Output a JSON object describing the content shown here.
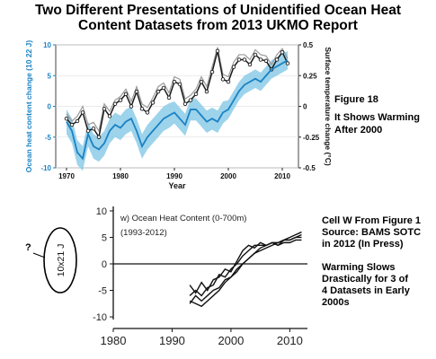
{
  "page": {
    "title_line1": "Two Different Presentations of Unidentified Ocean Heat",
    "title_line2": "Content Datasets from 2013 UKMO Report",
    "annotation_figure": "Figure 18",
    "annotation_warming_line1": "It Shows Warming",
    "annotation_warming_line2": "After 2000",
    "annotation_source_line1": "Cell W From Figure 1",
    "annotation_source_line2": "Source: BAMS SOTC",
    "annotation_source_line3": "in 2012 (In Press)",
    "annotation_slows_line1": "Warming Slows",
    "annotation_slows_line2": "Drastically for 3 of",
    "annotation_slows_line3": "4 Datasets in Early",
    "annotation_slows_line4": "2000s",
    "question_mark": "?"
  },
  "chart_data": [
    {
      "type": "line",
      "xlabel": "Year",
      "ylabel_left": "Ocean heat content change (10 22 J)",
      "ylabel_right": "Surface temperature change (°C)",
      "xlim": [
        1968,
        2013
      ],
      "ylim_left": [
        -10,
        10
      ],
      "ylim_right": [
        -0.5,
        0.5
      ],
      "x_ticks": [
        1970,
        1980,
        1990,
        2000,
        2010
      ],
      "y_ticks_left": [
        -10,
        -5,
        0,
        5,
        10
      ],
      "y_ticks_right": [
        -0.5,
        -0.25,
        0,
        0.25,
        0.5
      ],
      "colors": {
        "ohc": "#1a82c4",
        "band": "#8ccbe8",
        "surface": "#1a1a1a",
        "surface_alt": "#9a9a9a",
        "axis_left": "#1a82c4"
      },
      "series": [
        {
          "axis": "left",
          "x": [
            1970,
            1971,
            1972,
            1973,
            1974,
            1975,
            1976,
            1977,
            1978,
            1979,
            1980,
            1981,
            1982,
            1983,
            1984,
            1985,
            1986,
            1987,
            1988,
            1989,
            1990,
            1991,
            1992,
            1993,
            1994,
            1995,
            1996,
            1997,
            1998,
            1999,
            2000,
            2001,
            2002,
            2003,
            2004,
            2005,
            2006,
            2007,
            2008,
            2009,
            2010,
            2011
          ],
          "values": [
            -2.5,
            -4.0,
            -7.5,
            -8.5,
            -4.5,
            -6.5,
            -7.0,
            -6.0,
            -4.0,
            -3.0,
            -3.5,
            -2.5,
            -2.0,
            -4.0,
            -6.5,
            -5.0,
            -4.0,
            -3.0,
            -2.0,
            -1.5,
            -1.0,
            -2.0,
            -3.0,
            -0.5,
            -0.5,
            -1.5,
            -2.5,
            -2.0,
            -2.5,
            -1.0,
            -0.5,
            1.0,
            2.5,
            3.5,
            4.0,
            4.5,
            4.0,
            5.0,
            6.0,
            6.5,
            7.0,
            7.5
          ],
          "band": [
            2.0,
            2.0,
            2.0,
            2.0,
            2.0,
            2.0,
            2.0,
            2.0,
            2.0,
            2.0,
            2.0,
            2.0,
            2.0,
            2.0,
            2.0,
            2.0,
            2.0,
            2.0,
            2.0,
            2.0,
            1.8,
            1.8,
            1.8,
            1.8,
            1.8,
            1.8,
            1.8,
            1.8,
            1.8,
            1.8,
            1.5,
            1.5,
            1.5,
            1.5,
            1.5,
            1.5,
            1.5,
            1.5,
            1.5,
            1.5,
            1.5,
            1.5
          ]
        },
        {
          "axis": "right",
          "x": [
            1970,
            1971,
            1972,
            1973,
            1974,
            1975,
            1976,
            1977,
            1978,
            1979,
            1980,
            1981,
            1982,
            1983,
            1984,
            1985,
            1986,
            1987,
            1988,
            1989,
            1990,
            1991,
            1992,
            1993,
            1994,
            1995,
            1996,
            1997,
            1998,
            1999,
            2000,
            2001,
            2002,
            2003,
            2004,
            2005,
            2006,
            2007,
            2008,
            2009,
            2010,
            2011
          ],
          "values": [
            -0.1,
            -0.15,
            -0.12,
            -0.05,
            -0.2,
            -0.18,
            -0.25,
            -0.02,
            -0.08,
            0.02,
            0.05,
            0.1,
            0.0,
            0.12,
            -0.02,
            -0.05,
            0.03,
            0.12,
            0.15,
            0.07,
            0.2,
            0.18,
            0.02,
            0.05,
            0.1,
            0.2,
            0.12,
            0.28,
            0.45,
            0.22,
            0.2,
            0.32,
            0.38,
            0.38,
            0.34,
            0.42,
            0.38,
            0.37,
            0.3,
            0.38,
            0.44,
            0.35
          ]
        },
        {
          "axis": "right",
          "x": [
            1970,
            1971,
            1972,
            1973,
            1974,
            1975,
            1976,
            1977,
            1978,
            1979,
            1980,
            1981,
            1982,
            1983,
            1984,
            1985,
            1986,
            1987,
            1988,
            1989,
            1990,
            1991,
            1992,
            1993,
            1994,
            1995,
            1996,
            1997,
            1998,
            1999,
            2000,
            2001,
            2002,
            2003,
            2004,
            2005,
            2006,
            2007,
            2008,
            2009,
            2010,
            2011
          ],
          "values": [
            -0.06,
            -0.12,
            -0.08,
            0.0,
            -0.15,
            -0.13,
            -0.2,
            0.02,
            -0.04,
            0.05,
            0.08,
            0.14,
            0.04,
            0.16,
            0.02,
            -0.01,
            0.07,
            0.16,
            0.19,
            0.11,
            0.24,
            0.22,
            0.06,
            0.09,
            0.14,
            0.24,
            0.16,
            0.32,
            0.48,
            0.26,
            0.24,
            0.36,
            0.42,
            0.42,
            0.38,
            0.46,
            0.42,
            0.41,
            0.34,
            0.42,
            0.47,
            0.39
          ]
        }
      ]
    },
    {
      "type": "line",
      "title": "w) Ocean Heat Content (0-700m)",
      "subtitle": "(1993-2012)",
      "ylabel": "10x21 J",
      "xlim": [
        1980,
        2013
      ],
      "ylim": [
        -10.5,
        10.5
      ],
      "x_ticks": [
        1980,
        1990,
        2000,
        2010
      ],
      "x_tick_labels": [
        "1980",
        "1990",
        "2000",
        "2010"
      ],
      "y_ticks": [
        -10,
        -5,
        0,
        5,
        10
      ],
      "y_tick_labels": [
        "-10",
        "-5",
        "0",
        "5",
        "10"
      ],
      "series": [
        {
          "x": [
            1993,
            1994,
            1995,
            1996,
            1997,
            1998,
            1999,
            2000,
            2001,
            2002,
            2003,
            2004,
            2005,
            2006,
            2007,
            2008,
            2009,
            2010,
            2011,
            2012
          ],
          "values": [
            -4.0,
            -5.5,
            -3.5,
            -5.0,
            -3.0,
            -2.5,
            -1.0,
            -1.5,
            0.5,
            2.5,
            3.5,
            3.0,
            4.0,
            3.5,
            4.0,
            3.5,
            4.0,
            4.0,
            4.5,
            4.5
          ]
        },
        {
          "x": [
            1993,
            1994,
            1995,
            1996,
            1997,
            1998,
            1999,
            2000,
            2001,
            2002,
            2003,
            2004,
            2005,
            2006,
            2007,
            2008,
            2009,
            2010,
            2011,
            2012
          ],
          "values": [
            -6.0,
            -5.0,
            -6.0,
            -4.5,
            -4.0,
            -2.0,
            -2.5,
            -1.0,
            0.0,
            1.5,
            2.5,
            3.5,
            3.5,
            3.5,
            4.0,
            3.5,
            4.5,
            4.5,
            5.0,
            5.0
          ]
        },
        {
          "x": [
            1993,
            1994,
            1995,
            1996,
            1997,
            1998,
            1999,
            2000,
            2001,
            2002,
            2003,
            2004,
            2005,
            2006,
            2007,
            2008,
            2009,
            2010,
            2011,
            2012
          ],
          "values": [
            -7.5,
            -6.0,
            -7.0,
            -6.0,
            -5.0,
            -4.5,
            -3.0,
            -2.5,
            -1.0,
            0.0,
            1.0,
            2.0,
            3.0,
            3.5,
            4.0,
            4.0,
            4.5,
            4.5,
            5.0,
            5.5
          ]
        },
        {
          "x": [
            1993,
            1994,
            1995,
            1996,
            1997,
            1998,
            1999,
            2000,
            2001,
            2002,
            2003,
            2004,
            2005,
            2006,
            2007,
            2008,
            2009,
            2010,
            2011,
            2012
          ],
          "values": [
            -7.0,
            -7.5,
            -8.0,
            -7.0,
            -6.0,
            -5.0,
            -3.5,
            -2.5,
            -1.5,
            0.0,
            1.0,
            2.0,
            2.5,
            3.0,
            3.5,
            4.0,
            4.5,
            5.0,
            5.5,
            6.0
          ]
        }
      ]
    }
  ]
}
